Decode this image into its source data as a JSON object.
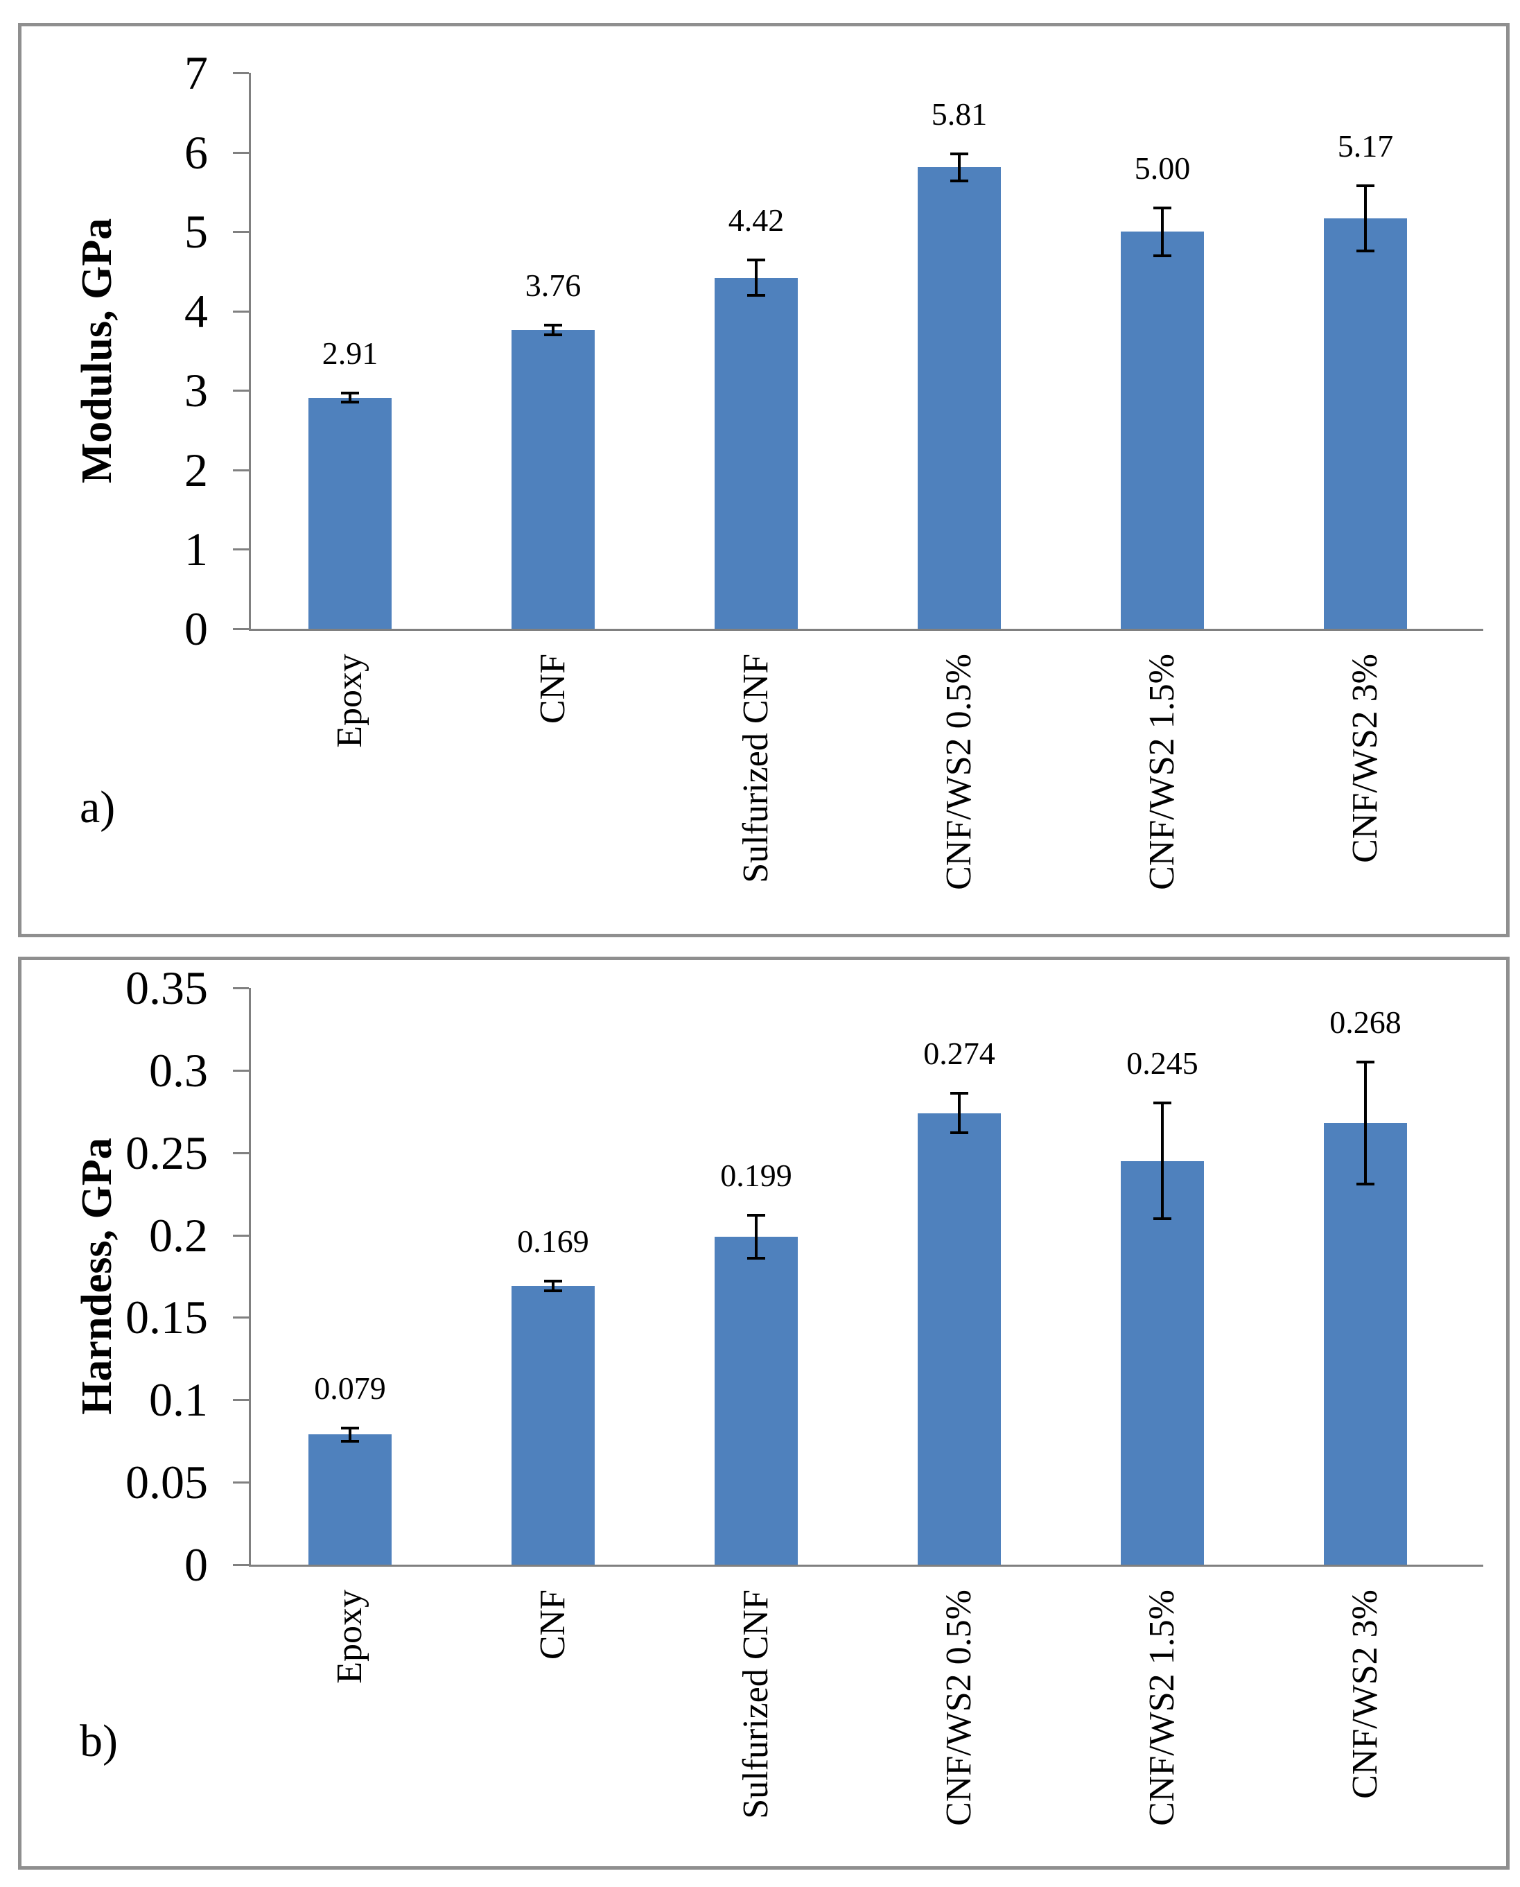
{
  "panels": [
    {
      "letter": "a)"
    },
    {
      "letter": "b)"
    }
  ],
  "chart_data": [
    {
      "type": "bar",
      "panel_letter": "a)",
      "title": "",
      "ylabel": "Modulus, GPa",
      "xlabel": "",
      "categories": [
        "Epoxy",
        "CNF",
        "Sulfurized CNF",
        "CNF/WS2  0.5%",
        "CNF/WS2  1.5%",
        "CNF/WS2  3%"
      ],
      "values": [
        2.91,
        3.76,
        4.42,
        5.81,
        5.0,
        5.17
      ],
      "value_labels": [
        "2.91",
        "3.76",
        "4.42",
        "5.81",
        "5.00",
        "5.17"
      ],
      "error_bars": [
        0.06,
        0.06,
        0.22,
        0.17,
        0.3,
        0.41
      ],
      "ylim": [
        0,
        7
      ],
      "yticks": [
        "0",
        "1",
        "2",
        "3",
        "4",
        "5",
        "6",
        "7"
      ],
      "grid": false,
      "legend": "none",
      "bar_color": "#4F81BD",
      "axis_color": "#808080",
      "error_color": "#000000",
      "text_color": "#000000"
    },
    {
      "type": "bar",
      "panel_letter": "b)",
      "title": "",
      "ylabel": "Harndess, GPa",
      "xlabel": "",
      "categories": [
        "Epoxy",
        "CNF",
        "Sulfurized CNF",
        "CNF/WS2  0.5%",
        "CNF/WS2  1.5%",
        "CNF/WS2  3%"
      ],
      "values": [
        0.079,
        0.169,
        0.199,
        0.274,
        0.245,
        0.268
      ],
      "value_labels": [
        "0.079",
        "0.169",
        "0.199",
        "0.274",
        "0.245",
        "0.268"
      ],
      "error_bars": [
        0.004,
        0.003,
        0.013,
        0.012,
        0.035,
        0.037
      ],
      "ylim": [
        0,
        0.35
      ],
      "yticks": [
        "0",
        "0.05",
        "0.1",
        "0.15",
        "0.2",
        "0.25",
        "0.3",
        "0.35"
      ],
      "grid": false,
      "legend": "none",
      "bar_color": "#4F81BD",
      "axis_color": "#808080",
      "error_color": "#000000",
      "text_color": "#000000"
    }
  ]
}
